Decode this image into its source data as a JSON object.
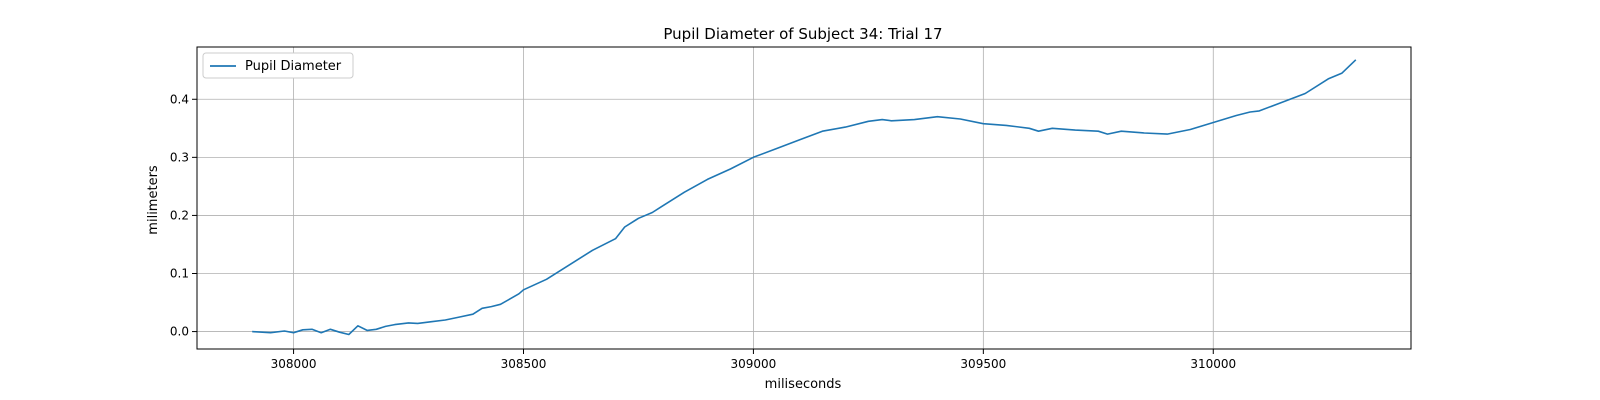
{
  "chart_data": {
    "type": "line",
    "title": "Pupil Diameter of Subject 34: Trial 17",
    "xlabel": "miliseconds",
    "ylabel": "milimeters",
    "xlim": [
      307790,
      310430
    ],
    "ylim": [
      -0.03,
      0.49
    ],
    "xticks": [
      308000,
      308500,
      309000,
      309500,
      310000
    ],
    "yticks": [
      0.0,
      0.1,
      0.2,
      0.3,
      0.4
    ],
    "ytick_labels": [
      "0.0",
      "0.1",
      "0.2",
      "0.3",
      "0.4"
    ],
    "grid": true,
    "legend_position": "top-left",
    "series": [
      {
        "name": "Pupil Diameter",
        "color": "#1f77b4",
        "x": [
          307910,
          307950,
          307980,
          308000,
          308020,
          308040,
          308060,
          308080,
          308100,
          308120,
          308140,
          308160,
          308180,
          308200,
          308220,
          308250,
          308270,
          308300,
          308330,
          308360,
          308390,
          308410,
          308430,
          308450,
          308470,
          308490,
          308500,
          308550,
          308600,
          308650,
          308700,
          308720,
          308750,
          308780,
          308800,
          308850,
          308900,
          308950,
          309000,
          309050,
          309100,
          309150,
          309200,
          309250,
          309280,
          309300,
          309350,
          309400,
          309450,
          309500,
          309550,
          309600,
          309620,
          309650,
          309700,
          309750,
          309770,
          309800,
          309850,
          309900,
          309950,
          310000,
          310050,
          310080,
          310100,
          310150,
          310200,
          310250,
          310280,
          310310
        ],
        "y": [
          0.0,
          -0.002,
          0.001,
          -0.002,
          0.003,
          0.004,
          -0.002,
          0.004,
          -0.001,
          -0.005,
          0.01,
          0.002,
          0.004,
          0.009,
          0.012,
          0.015,
          0.014,
          0.017,
          0.02,
          0.025,
          0.03,
          0.04,
          0.043,
          0.047,
          0.056,
          0.065,
          0.072,
          0.09,
          0.115,
          0.14,
          0.16,
          0.18,
          0.195,
          0.205,
          0.215,
          0.24,
          0.262,
          0.28,
          0.3,
          0.315,
          0.33,
          0.345,
          0.352,
          0.362,
          0.365,
          0.363,
          0.365,
          0.37,
          0.366,
          0.358,
          0.355,
          0.35,
          0.345,
          0.35,
          0.347,
          0.345,
          0.34,
          0.345,
          0.342,
          0.34,
          0.348,
          0.36,
          0.372,
          0.378,
          0.38,
          0.395,
          0.41,
          0.435,
          0.445,
          0.468
        ]
      }
    ]
  }
}
